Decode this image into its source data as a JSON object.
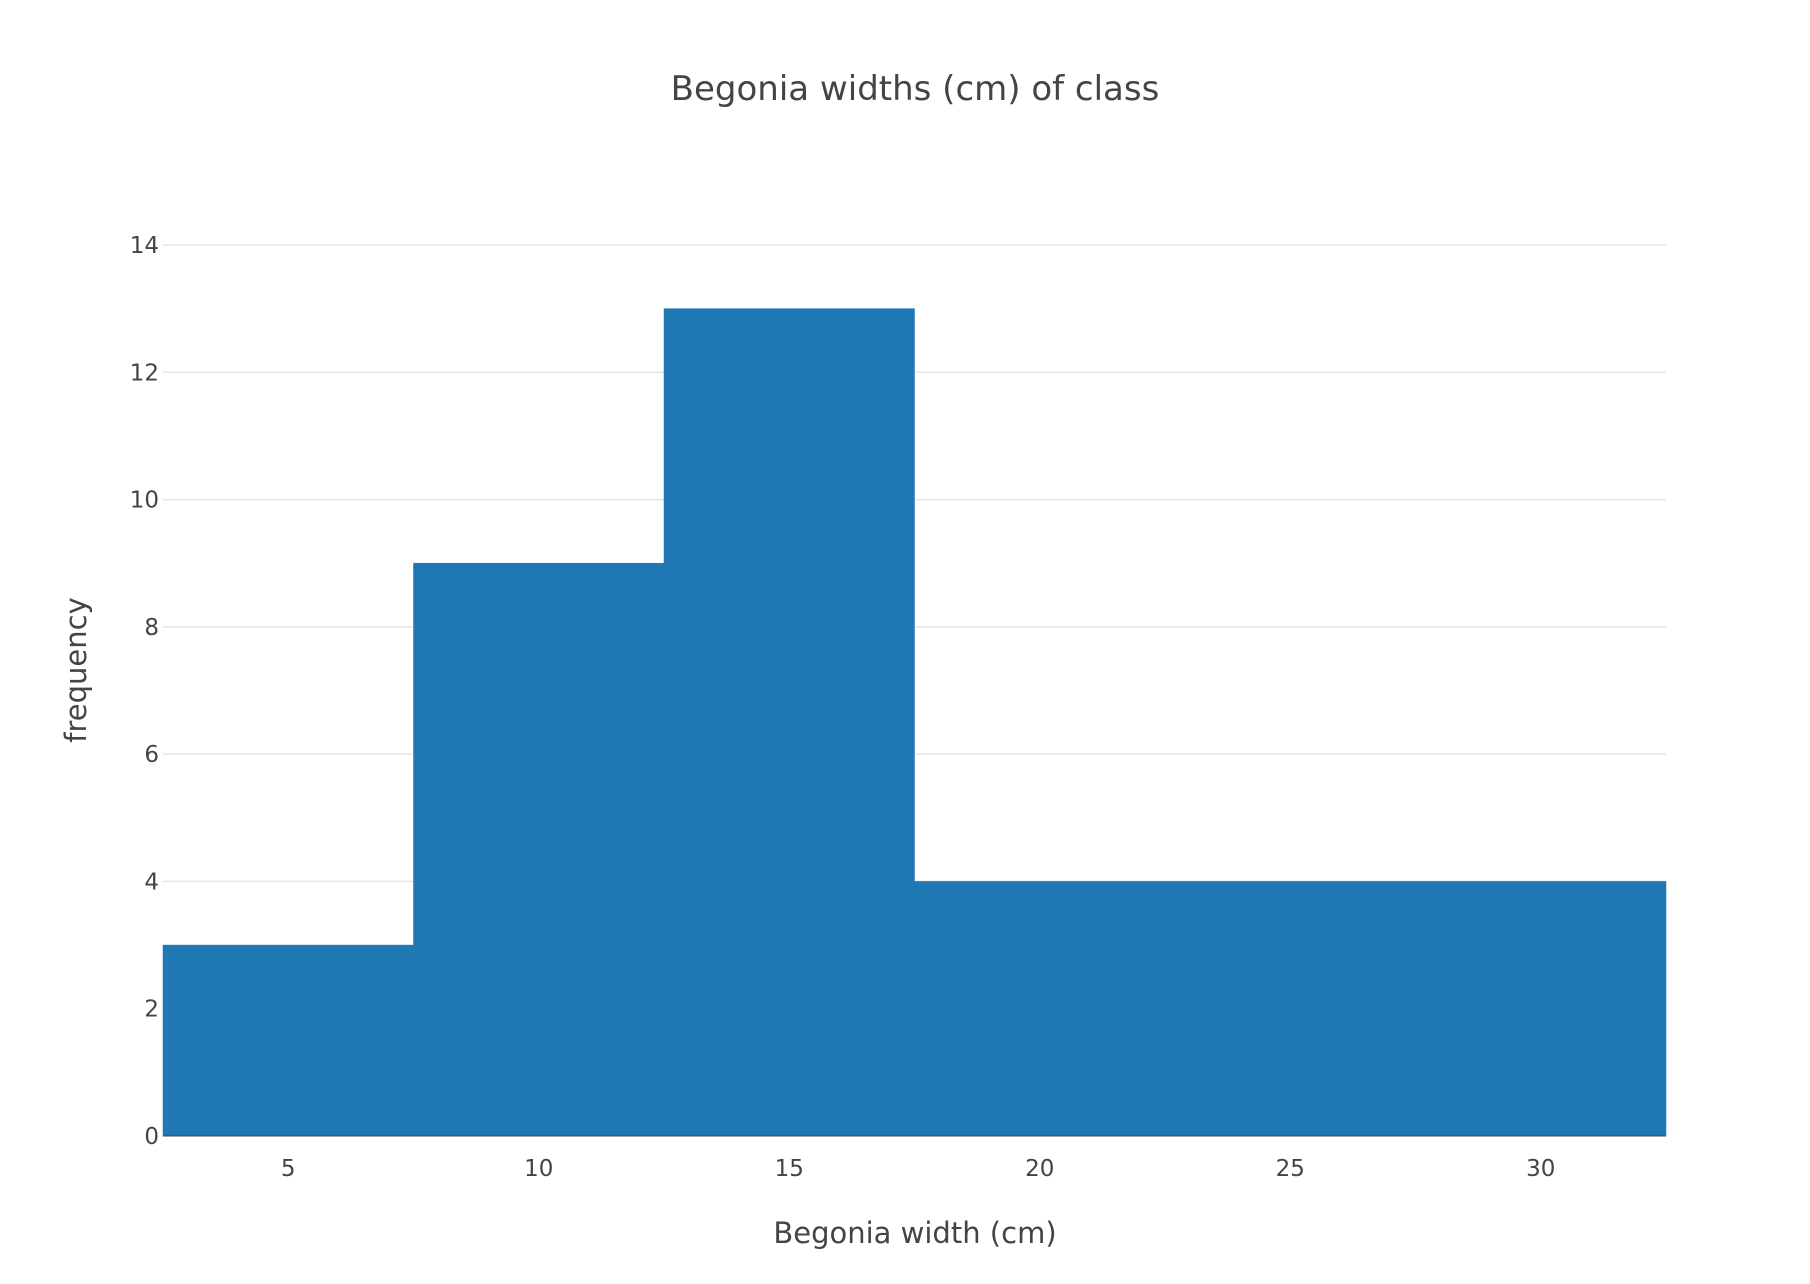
{
  "chart_data": {
    "type": "bar",
    "title": "Begonia widths (cm) of class",
    "xlabel": "Begonia width (cm)",
    "ylabel": "frequency",
    "bins": [
      {
        "start": 2.5,
        "end": 7.5,
        "value": 3
      },
      {
        "start": 7.5,
        "end": 12.5,
        "value": 9
      },
      {
        "start": 12.5,
        "end": 17.5,
        "value": 13
      },
      {
        "start": 17.5,
        "end": 32.5,
        "value": 4
      }
    ],
    "xlim": [
      2.5,
      32.5
    ],
    "ylim": [
      0,
      14
    ],
    "x_ticks": [
      5,
      10,
      15,
      20,
      25,
      30
    ],
    "y_ticks": [
      0,
      2,
      4,
      6,
      8,
      10,
      12,
      14
    ],
    "grid": true,
    "bar_color": "#1f77b4"
  }
}
